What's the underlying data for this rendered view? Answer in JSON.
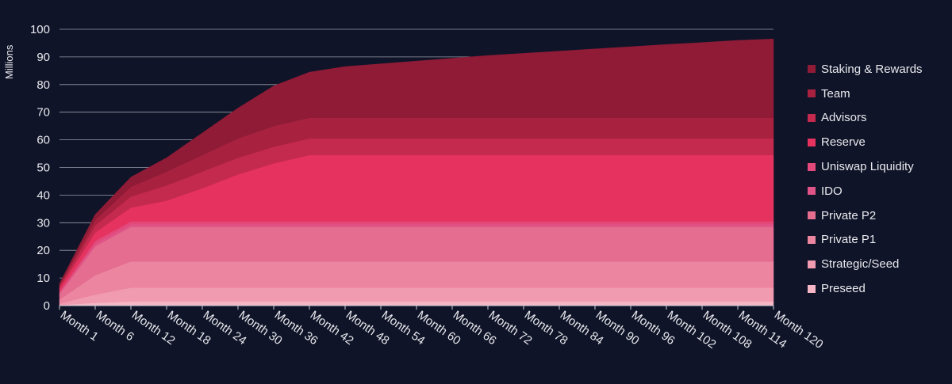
{
  "chart_data": {
    "type": "area",
    "stacked": true,
    "ylabel": "Millions",
    "xlabel": "",
    "ylim": [
      0,
      100
    ],
    "yticks": [
      0,
      10,
      20,
      30,
      40,
      50,
      60,
      70,
      80,
      90,
      100
    ],
    "grid": true,
    "legend_position": "right",
    "x": [
      "Month 1",
      "Month 6",
      "Month 12",
      "Month 18",
      "Month 24",
      "Month 30",
      "Month 36",
      "Month 42",
      "Month 48",
      "Month 54",
      "Month 60",
      "Month 66",
      "Month 72",
      "Month 78",
      "Month 84",
      "Month 90",
      "Month 96",
      "Month 102",
      "Month 108",
      "Month 114",
      "Month 120"
    ],
    "series": [
      {
        "name": "Preseed",
        "color": "#f6b6c6",
        "values": [
          0.2,
          1.0,
          1.5,
          1.5,
          1.5,
          1.5,
          1.5,
          1.5,
          1.5,
          1.5,
          1.5,
          1.5,
          1.5,
          1.5,
          1.5,
          1.5,
          1.5,
          1.5,
          1.5,
          1.5,
          1.5
        ]
      },
      {
        "name": "Strategic/Seed",
        "color": "#f19bb0",
        "values": [
          0.5,
          3.0,
          5.0,
          5.0,
          5.0,
          5.0,
          5.0,
          5.0,
          5.0,
          5.0,
          5.0,
          5.0,
          5.0,
          5.0,
          5.0,
          5.0,
          5.0,
          5.0,
          5.0,
          5.0,
          5.0
        ]
      },
      {
        "name": "Private P1",
        "color": "#ec86a0",
        "values": [
          1.5,
          7.0,
          9.5,
          9.5,
          9.5,
          9.5,
          9.5,
          9.5,
          9.5,
          9.5,
          9.5,
          9.5,
          9.5,
          9.5,
          9.5,
          9.5,
          9.5,
          9.5,
          9.5,
          9.5,
          9.5
        ]
      },
      {
        "name": "Private P2",
        "color": "#e46d90",
        "values": [
          2.0,
          10.5,
          12.5,
          12.5,
          12.5,
          12.5,
          12.5,
          12.5,
          12.5,
          12.5,
          12.5,
          12.5,
          12.5,
          12.5,
          12.5,
          12.5,
          12.5,
          12.5,
          12.5,
          12.5,
          12.5
        ]
      },
      {
        "name": "IDO",
        "color": "#e05386",
        "values": [
          0.5,
          1.0,
          1.0,
          1.0,
          1.0,
          1.0,
          1.0,
          1.0,
          1.0,
          1.0,
          1.0,
          1.0,
          1.0,
          1.0,
          1.0,
          1.0,
          1.0,
          1.0,
          1.0,
          1.0,
          1.0
        ]
      },
      {
        "name": "Uniswap Liquidity",
        "color": "#e2497a",
        "values": [
          0.5,
          1.0,
          1.0,
          1.0,
          1.0,
          1.0,
          1.0,
          1.0,
          1.0,
          1.0,
          1.0,
          1.0,
          1.0,
          1.0,
          1.0,
          1.0,
          1.0,
          1.0,
          1.0,
          1.0,
          1.0
        ]
      },
      {
        "name": "Reserve",
        "color": "#e5325e",
        "values": [
          1.0,
          3.0,
          5.0,
          7.5,
          12.0,
          17.0,
          21.0,
          24.0,
          24.0,
          24.0,
          24.0,
          24.0,
          24.0,
          24.0,
          24.0,
          24.0,
          24.0,
          24.0,
          24.0,
          24.0,
          24.0
        ]
      },
      {
        "name": "Advisors",
        "color": "#c42a4d",
        "values": [
          0.8,
          2.5,
          4.0,
          5.5,
          6.0,
          6.0,
          6.0,
          6.0,
          6.0,
          6.0,
          6.0,
          6.0,
          6.0,
          6.0,
          6.0,
          6.0,
          6.0,
          6.0,
          6.0,
          6.0,
          6.0
        ]
      },
      {
        "name": "Team",
        "color": "#a8223f",
        "values": [
          0.5,
          2.0,
          3.5,
          5.0,
          6.0,
          7.0,
          7.5,
          7.5,
          7.5,
          7.5,
          7.5,
          7.5,
          7.5,
          7.5,
          7.5,
          7.5,
          7.5,
          7.5,
          7.5,
          7.5,
          7.5
        ]
      },
      {
        "name": "Staking & Rewards",
        "color": "#8f1b36",
        "values": [
          0.5,
          2.0,
          3.5,
          5.0,
          8.0,
          11.0,
          14.5,
          16.5,
          18.5,
          19.5,
          20.5,
          21.5,
          22.5,
          23.3,
          24.1,
          24.9,
          25.7,
          26.5,
          27.2,
          28.0,
          28.5
        ]
      }
    ]
  }
}
